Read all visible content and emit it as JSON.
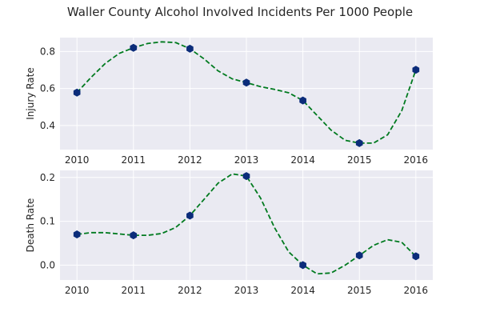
{
  "chart_data": {
    "title": "Waller County Alcohol Involved Incidents Per 1000 People",
    "style": {
      "axes_bg": "#eaeaf2",
      "grid": "#ffffff",
      "line_color": "#007a1f",
      "marker_color": "#0b2c7a",
      "text_color": "#262626"
    },
    "panels": [
      {
        "type": "line",
        "ylabel": "Injury Rate",
        "x": [
          2010,
          2011,
          2012,
          2013,
          2014,
          2015,
          2016
        ],
        "y": [
          0.578,
          0.82,
          0.815,
          0.632,
          0.535,
          0.305,
          0.701
        ],
        "curve": [
          [
            2010.0,
            0.578
          ],
          [
            2010.25,
            0.66
          ],
          [
            2010.5,
            0.735
          ],
          [
            2010.75,
            0.79
          ],
          [
            2011.0,
            0.82
          ],
          [
            2011.25,
            0.843
          ],
          [
            2011.5,
            0.852
          ],
          [
            2011.75,
            0.848
          ],
          [
            2012.0,
            0.815
          ],
          [
            2012.25,
            0.76
          ],
          [
            2012.5,
            0.695
          ],
          [
            2012.75,
            0.652
          ],
          [
            2013.0,
            0.632
          ],
          [
            2013.25,
            0.61
          ],
          [
            2013.5,
            0.595
          ],
          [
            2013.75,
            0.577
          ],
          [
            2014.0,
            0.535
          ],
          [
            2014.25,
            0.455
          ],
          [
            2014.5,
            0.375
          ],
          [
            2014.75,
            0.32
          ],
          [
            2015.0,
            0.305
          ],
          [
            2015.25,
            0.305
          ],
          [
            2015.5,
            0.35
          ],
          [
            2015.75,
            0.48
          ],
          [
            2016.0,
            0.701
          ]
        ],
        "xlim": [
          2009.7,
          2016.3
        ],
        "ylim": [
          0.27,
          0.875
        ],
        "yticks": [
          0.4,
          0.6,
          0.8
        ],
        "ytick_labels": [
          "0.4",
          "0.6",
          "0.8"
        ],
        "xticks": [
          2010,
          2011,
          2012,
          2013,
          2014,
          2015,
          2016
        ],
        "xtick_labels": [
          "2010",
          "2011",
          "2012",
          "2013",
          "2014",
          "2015",
          "2016"
        ]
      },
      {
        "type": "line",
        "ylabel": "Death Rate",
        "x": [
          2010,
          2011,
          2012,
          2013,
          2014,
          2015,
          2016
        ],
        "y": [
          0.07,
          0.068,
          0.113,
          0.203,
          0.0,
          0.022,
          0.02
        ],
        "curve": [
          [
            2010.0,
            0.07
          ],
          [
            2010.25,
            0.074
          ],
          [
            2010.5,
            0.074
          ],
          [
            2010.75,
            0.071
          ],
          [
            2011.0,
            0.068
          ],
          [
            2011.25,
            0.068
          ],
          [
            2011.5,
            0.072
          ],
          [
            2011.75,
            0.086
          ],
          [
            2012.0,
            0.113
          ],
          [
            2012.25,
            0.15
          ],
          [
            2012.5,
            0.187
          ],
          [
            2012.75,
            0.208
          ],
          [
            2013.0,
            0.203
          ],
          [
            2013.25,
            0.153
          ],
          [
            2013.5,
            0.085
          ],
          [
            2013.75,
            0.03
          ],
          [
            2014.0,
            0.0
          ],
          [
            2014.25,
            -0.02
          ],
          [
            2014.5,
            -0.018
          ],
          [
            2014.75,
            0.0
          ],
          [
            2015.0,
            0.022
          ],
          [
            2015.25,
            0.045
          ],
          [
            2015.5,
            0.058
          ],
          [
            2015.75,
            0.052
          ],
          [
            2016.0,
            0.02
          ]
        ],
        "xlim": [
          2009.7,
          2016.3
        ],
        "ylim": [
          -0.034,
          0.216
        ],
        "yticks": [
          0.0,
          0.1,
          0.2
        ],
        "ytick_labels": [
          "0.0",
          "0.1",
          "0.2"
        ],
        "xticks": [
          2010,
          2011,
          2012,
          2013,
          2014,
          2015,
          2016
        ],
        "xtick_labels": [
          "2010",
          "2011",
          "2012",
          "2013",
          "2014",
          "2015",
          "2016"
        ]
      }
    ]
  }
}
